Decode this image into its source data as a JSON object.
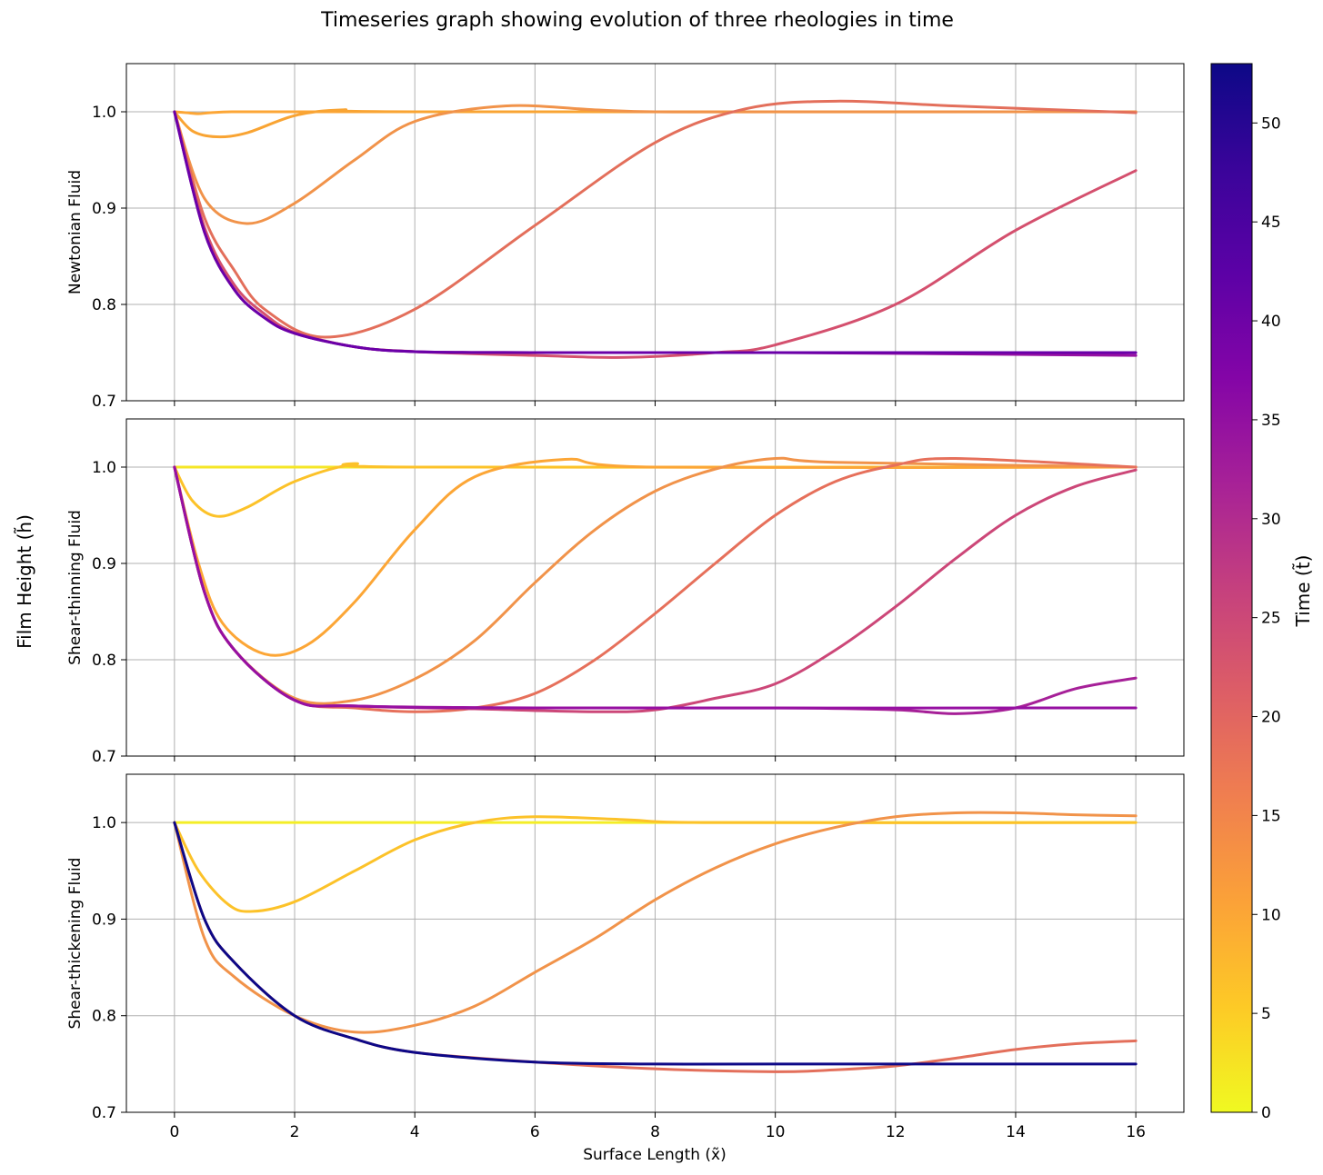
{
  "title": "Timeseries graph showing evolution of three rheologies in time",
  "shared_ylabel": "Film Height (h̃)",
  "xlabel": "Surface Length (x̃)",
  "colorbar": {
    "label": "Time (t̃)",
    "min": 0,
    "max": 53,
    "ticks": [
      0,
      5,
      10,
      15,
      20,
      25,
      30,
      35,
      40,
      45,
      50
    ],
    "colormap": "plasma"
  },
  "chart_data": [
    {
      "type": "line",
      "ylabel": "Newtonian Fluid",
      "xlim": [
        -0.8,
        16.8
      ],
      "ylim": [
        0.7,
        1.05
      ],
      "xticks": [
        0,
        2,
        4,
        6,
        8,
        10,
        12,
        14,
        16
      ],
      "yticks": [
        "0.7",
        "0.8",
        "0.9",
        "1.0"
      ],
      "grid": true,
      "series": [
        {
          "t": 6,
          "color": "#fca636",
          "x": [
            0,
            0.2,
            0.4,
            0.6,
            1.0,
            2.0,
            3.0,
            4.0,
            16
          ],
          "y": [
            1.0,
            0.999,
            0.998,
            0.999,
            1.0,
            1.0,
            1.0,
            1.0,
            1.0
          ]
        },
        {
          "t": 9,
          "color": "#f9a433",
          "x": [
            0,
            0.3,
            0.7,
            1.2,
            2.0,
            2.8,
            4.0,
            16
          ],
          "y": [
            1.0,
            0.98,
            0.974,
            0.978,
            0.996,
            1.002,
            1.0,
            1.0
          ]
        },
        {
          "t": 14,
          "color": "#f1934a",
          "x": [
            0,
            0.5,
            1.2,
            2.0,
            3.0,
            4.0,
            5.5,
            7.0,
            8.0,
            10,
            16
          ],
          "y": [
            1.0,
            0.91,
            0.884,
            0.905,
            0.95,
            0.99,
            1.006,
            1.002,
            1.0,
            1.0,
            1.0
          ]
        },
        {
          "t": 20,
          "color": "#e36f5b",
          "x": [
            0,
            0.5,
            1.0,
            1.5,
            2.5,
            4.0,
            6.0,
            8.0,
            9.5,
            11.0,
            13.0,
            16
          ],
          "y": [
            1.0,
            0.89,
            0.835,
            0.795,
            0.766,
            0.795,
            0.882,
            0.968,
            1.003,
            1.011,
            1.006,
            0.999
          ]
        },
        {
          "t": 27,
          "color": "#d4506e",
          "x": [
            0,
            0.5,
            1.0,
            1.5,
            2.0,
            3.0,
            4.0,
            6.0,
            7.5,
            9.0,
            10.0,
            12.0,
            14.0,
            16
          ],
          "y": [
            1.0,
            0.88,
            0.82,
            0.79,
            0.771,
            0.756,
            0.751,
            0.747,
            0.745,
            0.75,
            0.758,
            0.8,
            0.877,
            0.939
          ]
        },
        {
          "t": 37,
          "color": "#9610a2",
          "x": [
            0,
            0.5,
            1.0,
            1.5,
            2.0,
            3.0,
            4.0,
            6.0,
            10.0,
            16
          ],
          "y": [
            1.0,
            0.875,
            0.815,
            0.786,
            0.77,
            0.756,
            0.751,
            0.75,
            0.75,
            0.747
          ]
        },
        {
          "t": 44,
          "color": "#6a00a8",
          "x": [
            0,
            0.5,
            1.0,
            1.5,
            2.0,
            3.0,
            4.0,
            6.0,
            10.0,
            16
          ],
          "y": [
            1.0,
            0.875,
            0.815,
            0.786,
            0.77,
            0.756,
            0.751,
            0.75,
            0.75,
            0.75
          ]
        }
      ]
    },
    {
      "type": "line",
      "ylabel": "Shear-thinning Fluid",
      "xlim": [
        -0.8,
        16.8
      ],
      "ylim": [
        0.7,
        1.05
      ],
      "xticks": [
        0,
        2,
        4,
        6,
        8,
        10,
        12,
        14,
        16
      ],
      "yticks": [
        "0.7",
        "0.8",
        "0.9",
        "1.0"
      ],
      "grid": true,
      "series": [
        {
          "t": 1,
          "color": "#f5e626",
          "x": [
            0,
            16
          ],
          "y": [
            1.0,
            1.0
          ]
        },
        {
          "t": 5,
          "color": "#fcc229",
          "x": [
            0,
            0.3,
            0.7,
            1.2,
            2.0,
            3.0,
            4.0,
            16
          ],
          "y": [
            1.0,
            0.965,
            0.949,
            0.958,
            0.985,
            1.003,
            1.0,
            1.0
          ]
        },
        {
          "t": 9,
          "color": "#fca636",
          "x": [
            0,
            0.4,
            0.8,
            1.5,
            2.2,
            3.0,
            4.0,
            5.0,
            6.5,
            8.0,
            16
          ],
          "y": [
            1.0,
            0.9,
            0.838,
            0.806,
            0.815,
            0.86,
            0.935,
            0.99,
            1.008,
            1.0,
            1.0
          ]
        },
        {
          "t": 14,
          "color": "#f1934a",
          "x": [
            0,
            0.5,
            1.0,
            2.0,
            3.0,
            4.0,
            5.0,
            6.0,
            7.0,
            8.0,
            9.0,
            10.0,
            11.0,
            16
          ],
          "y": [
            1.0,
            0.87,
            0.81,
            0.76,
            0.758,
            0.78,
            0.82,
            0.88,
            0.935,
            0.975,
            0.998,
            1.009,
            1.005,
            1.0
          ]
        },
        {
          "t": 19,
          "color": "#e6705b",
          "x": [
            0,
            0.5,
            1.0,
            2.0,
            3.0,
            4.0,
            5.0,
            6.0,
            7.0,
            8.0,
            9.0,
            10.0,
            11.0,
            12.0,
            13.0,
            16
          ],
          "y": [
            1.0,
            0.87,
            0.81,
            0.758,
            0.75,
            0.746,
            0.75,
            0.765,
            0.8,
            0.848,
            0.9,
            0.95,
            0.985,
            1.002,
            1.009,
            1.0
          ]
        },
        {
          "t": 26,
          "color": "#cc4778",
          "x": [
            0,
            0.5,
            1.0,
            2.0,
            3.0,
            5.0,
            7.0,
            8.0,
            9.0,
            10.0,
            11.0,
            12.0,
            13.0,
            14.0,
            15.0,
            16
          ],
          "y": [
            1.0,
            0.87,
            0.81,
            0.758,
            0.752,
            0.749,
            0.746,
            0.748,
            0.76,
            0.775,
            0.81,
            0.855,
            0.905,
            0.95,
            0.98,
            0.997
          ]
        },
        {
          "t": 33,
          "color": "#a62098",
          "x": [
            0,
            0.5,
            1.0,
            2.0,
            3.0,
            6.0,
            10.0,
            12.0,
            13.0,
            14.0,
            15.0,
            16
          ],
          "y": [
            1.0,
            0.87,
            0.81,
            0.758,
            0.752,
            0.75,
            0.75,
            0.748,
            0.744,
            0.75,
            0.77,
            0.781
          ]
        },
        {
          "t": 38,
          "color": "#9610a2",
          "x": [
            0,
            0.5,
            1.0,
            2.0,
            3.0,
            6.0,
            16
          ],
          "y": [
            1.0,
            0.87,
            0.81,
            0.758,
            0.752,
            0.75,
            0.75
          ]
        }
      ]
    },
    {
      "type": "line",
      "ylabel": "Shear-thickening Fluid",
      "xlim": [
        -0.8,
        16.8
      ],
      "ylim": [
        0.7,
        1.05
      ],
      "xticks": [
        0,
        2,
        4,
        6,
        8,
        10,
        12,
        14,
        16
      ],
      "yticks": [
        "0.7",
        "0.8",
        "0.9",
        "1.0"
      ],
      "grid": true,
      "series": [
        {
          "t": 1,
          "color": "#f3ee27",
          "x": [
            0,
            16
          ],
          "y": [
            1.0,
            1.0
          ]
        },
        {
          "t": 6,
          "color": "#fcc229",
          "x": [
            0,
            0.4,
            0.9,
            1.3,
            2.0,
            3.0,
            4.0,
            5.0,
            6.0,
            7.5,
            9.0,
            16
          ],
          "y": [
            1.0,
            0.95,
            0.915,
            0.908,
            0.918,
            0.95,
            0.982,
            1.0,
            1.006,
            1.003,
            1.0,
            1.0
          ]
        },
        {
          "t": 13,
          "color": "#f1934a",
          "x": [
            0,
            0.5,
            1.0,
            2.0,
            3.0,
            4.0,
            5.0,
            6.0,
            7.0,
            8.0,
            9.0,
            10.0,
            11.0,
            12.0,
            13.0,
            14.0,
            15.0,
            16
          ],
          "y": [
            1.0,
            0.88,
            0.84,
            0.8,
            0.783,
            0.79,
            0.81,
            0.845,
            0.88,
            0.92,
            0.953,
            0.978,
            0.995,
            1.006,
            1.01,
            1.01,
            1.008,
            1.007
          ]
        },
        {
          "t": 20,
          "color": "#e36f5b",
          "x": [
            0,
            0.5,
            1.0,
            2.0,
            3.0,
            4.0,
            6.0,
            8.0,
            10.0,
            11.0,
            12.0,
            13.0,
            14.0,
            15.0,
            16
          ],
          "y": [
            1.0,
            0.9,
            0.855,
            0.8,
            0.776,
            0.762,
            0.752,
            0.745,
            0.742,
            0.744,
            0.748,
            0.756,
            0.765,
            0.771,
            0.774
          ]
        },
        {
          "t": 53,
          "color": "#0d0887",
          "x": [
            0,
            0.5,
            1.0,
            2.0,
            3.0,
            4.0,
            6.0,
            8.0,
            10.0,
            16
          ],
          "y": [
            1.0,
            0.9,
            0.855,
            0.8,
            0.776,
            0.762,
            0.752,
            0.75,
            0.75,
            0.75
          ]
        }
      ]
    }
  ]
}
